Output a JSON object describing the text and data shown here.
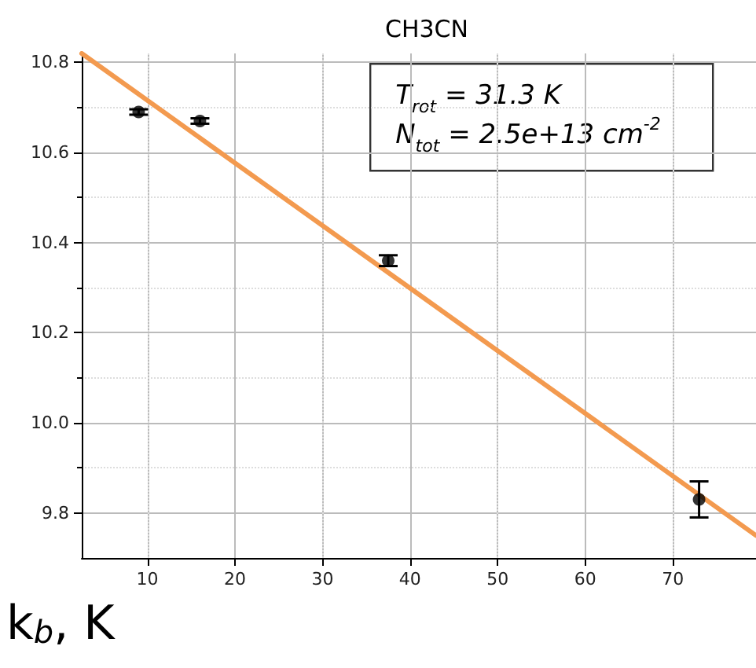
{
  "chart_data": {
    "type": "scatter",
    "title": "CH3CN",
    "xlabel": "k$_{b}$, K",
    "annotations": [
      "T$_{rot}$ = 31.3 K",
      "N$_{tot}$ = 2.5e+13 cm$^{-2}$"
    ],
    "x": [
      9,
      16,
      37.5,
      73
    ],
    "series": [
      {
        "color": "#000000",
        "values": [
          10.69,
          10.67,
          10.36,
          9.83
        ],
        "errors": [
          0.006,
          0.006,
          0.012,
          0.04
        ],
        "marker": "circle"
      },
      {
        "type": "line",
        "color": "#f39a4f",
        "x": [
          2.5,
          79.5
        ],
        "values": [
          10.82,
          9.75
        ],
        "marker": "none",
        "line_style": "solid"
      }
    ],
    "xlim": [
      2.5,
      79.5
    ],
    "xticks": [
      10,
      20,
      30,
      40,
      50,
      60,
      70
    ],
    "ylim": [
      9.7,
      10.82
    ],
    "yticks": [
      9.8,
      {
        "value": 10,
        "label": "10.0"
      },
      10.2,
      10.4,
      10.6,
      10.8
    ],
    "grid": true
  }
}
